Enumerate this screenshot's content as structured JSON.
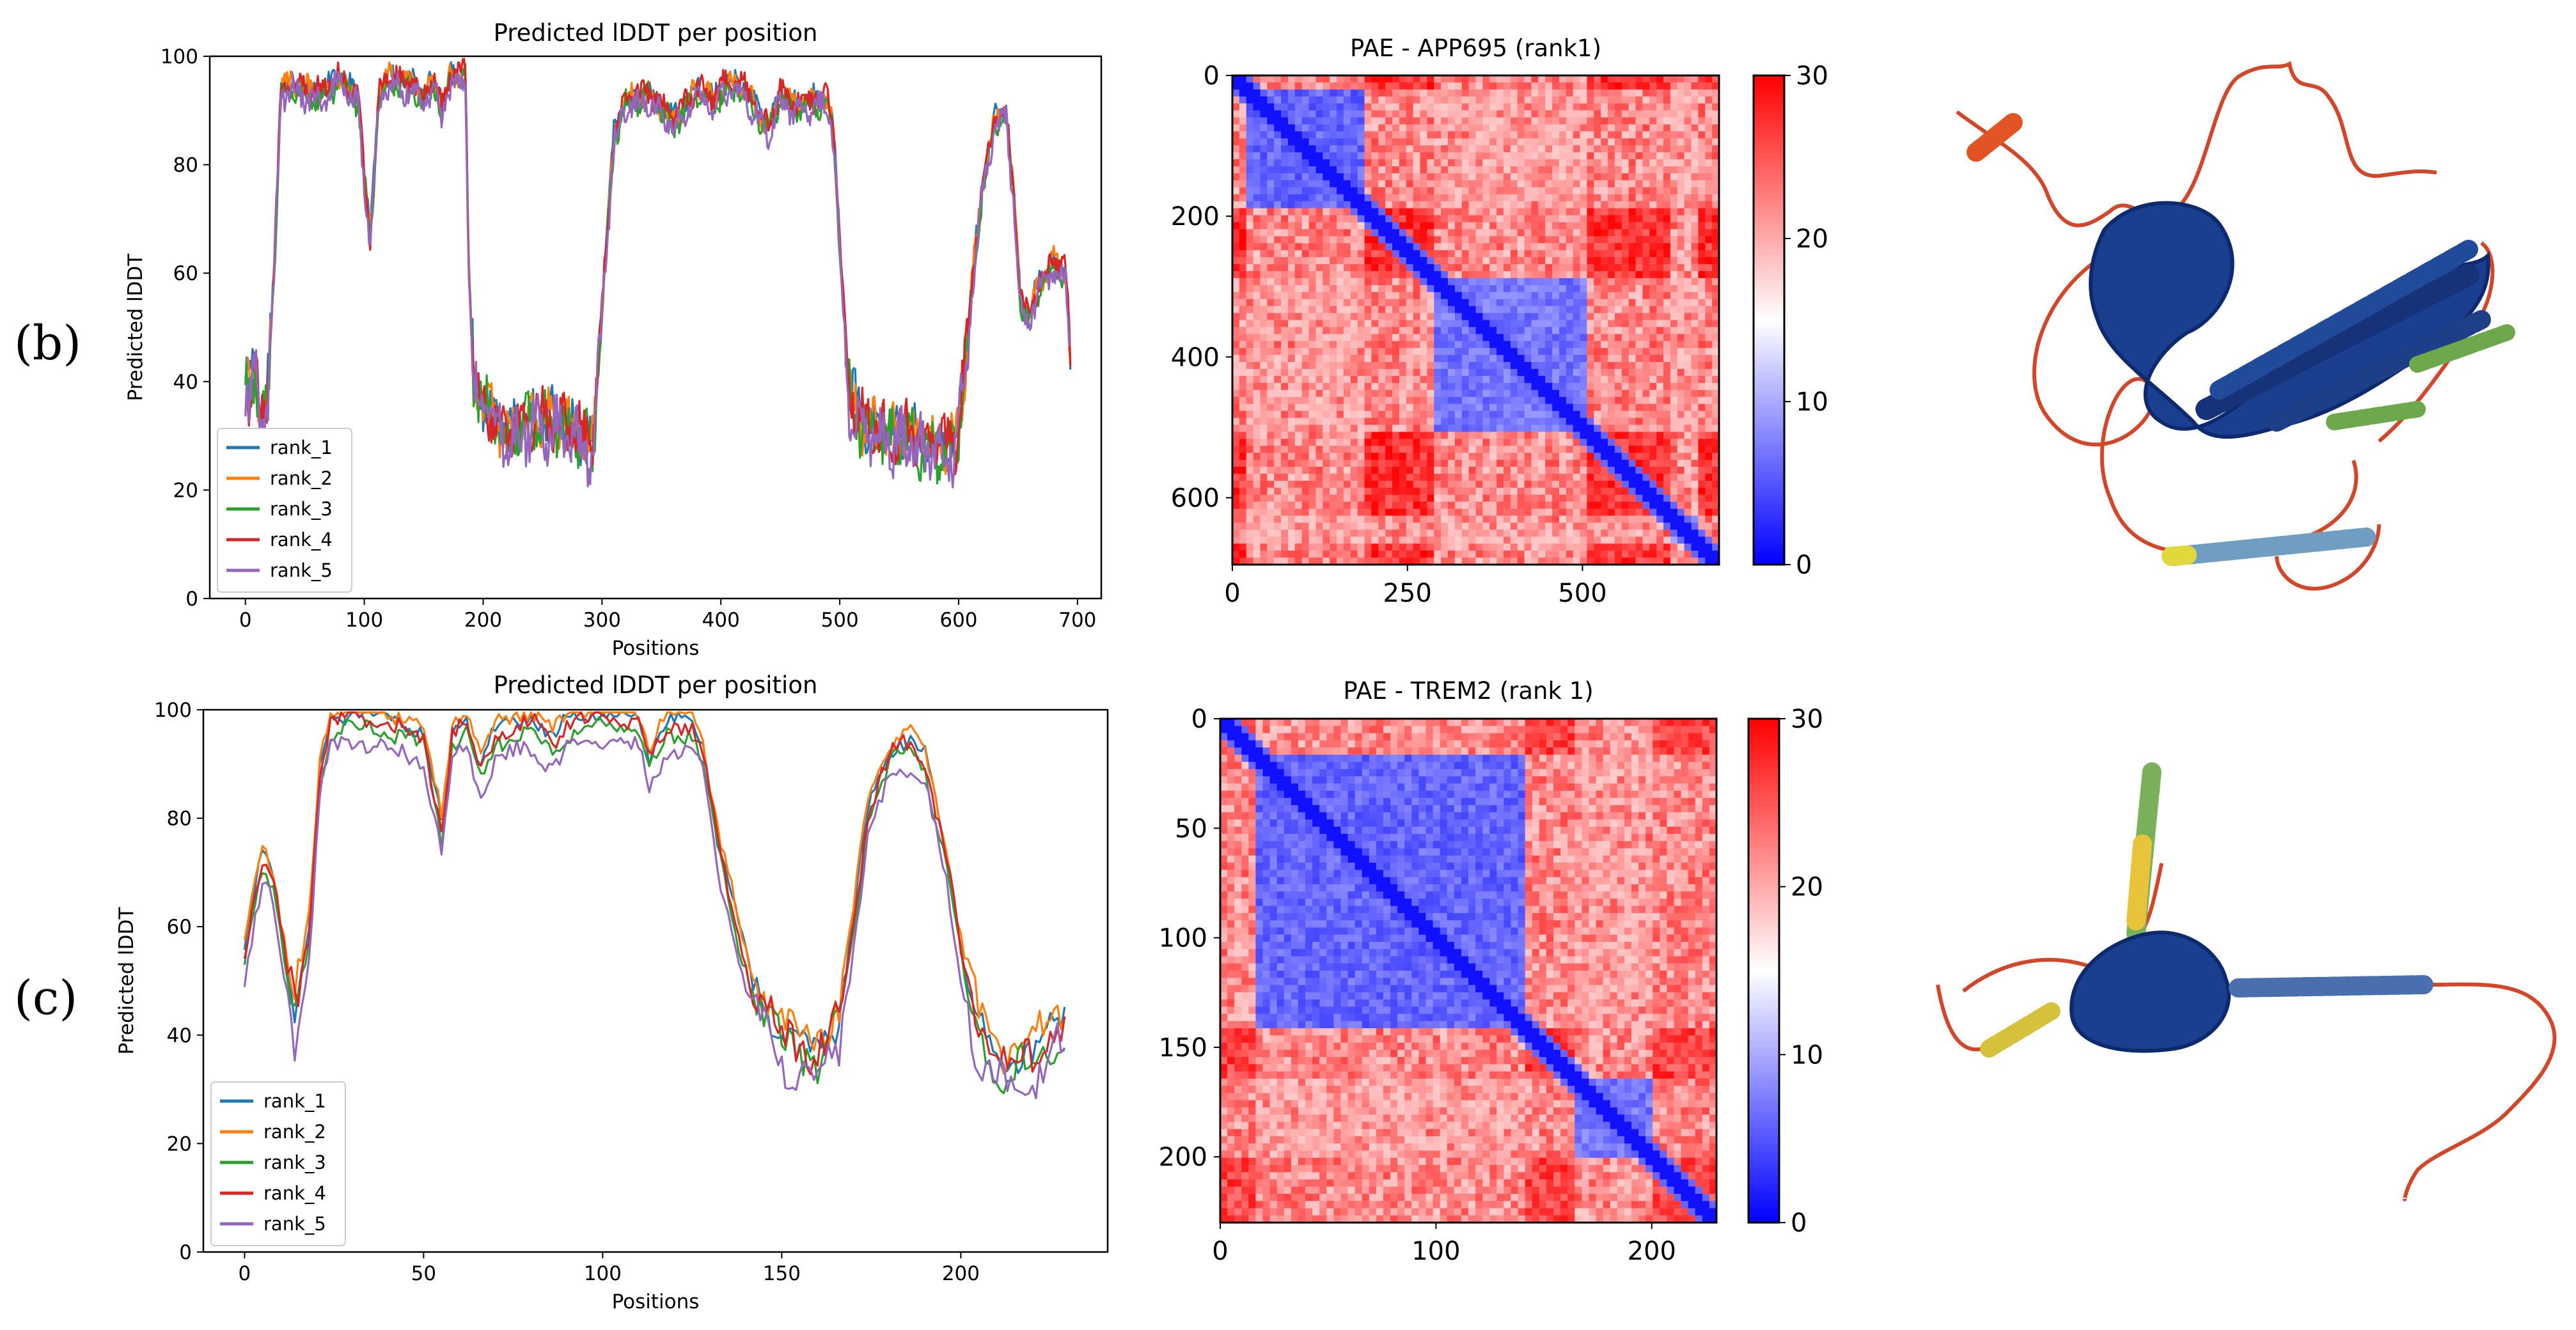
{
  "panel_labels": {
    "b": "(b)",
    "c": "(c)"
  },
  "colors": {
    "rank_1": "#1f77b4",
    "rank_2": "#ff7f0e",
    "rank_3": "#2ca02c",
    "rank_4": "#d62728",
    "rank_5": "#9467bd",
    "pae_low": "#0000ff",
    "pae_mid": "#ffffff",
    "pae_high": "#ff0000"
  },
  "chart_data": [
    {
      "id": "lddt_b",
      "type": "line",
      "title": "Predicted lDDT per position",
      "xlabel": "Positions",
      "ylabel": "Predicted lDDT",
      "xlim": [
        -30,
        720
      ],
      "ylim": [
        0,
        100
      ],
      "xticks": [
        0,
        100,
        200,
        300,
        400,
        500,
        600,
        700
      ],
      "yticks": [
        0,
        20,
        40,
        60,
        80,
        100
      ],
      "legend": "lower-left",
      "n": 695,
      "profile": [
        [
          0,
          42
        ],
        [
          3,
          38
        ],
        [
          8,
          45
        ],
        [
          12,
          32
        ],
        [
          18,
          35
        ],
        [
          24,
          60
        ],
        [
          30,
          94
        ],
        [
          40,
          95
        ],
        [
          60,
          93
        ],
        [
          80,
          96
        ],
        [
          95,
          92
        ],
        [
          100,
          78
        ],
        [
          105,
          66
        ],
        [
          112,
          92
        ],
        [
          120,
          96
        ],
        [
          140,
          95
        ],
        [
          150,
          92
        ],
        [
          158,
          96
        ],
        [
          165,
          90
        ],
        [
          172,
          96
        ],
        [
          185,
          97
        ],
        [
          188,
          60
        ],
        [
          192,
          40
        ],
        [
          200,
          36
        ],
        [
          220,
          30
        ],
        [
          240,
          33
        ],
        [
          260,
          33
        ],
        [
          280,
          30
        ],
        [
          292,
          28
        ],
        [
          296,
          40
        ],
        [
          302,
          60
        ],
        [
          310,
          85
        ],
        [
          320,
          92
        ],
        [
          340,
          93
        ],
        [
          360,
          88
        ],
        [
          380,
          94
        ],
        [
          395,
          92
        ],
        [
          405,
          95
        ],
        [
          420,
          94
        ],
        [
          430,
          90
        ],
        [
          440,
          87
        ],
        [
          450,
          93
        ],
        [
          460,
          91
        ],
        [
          480,
          92
        ],
        [
          490,
          92
        ],
        [
          495,
          85
        ],
        [
          502,
          58
        ],
        [
          508,
          38
        ],
        [
          520,
          32
        ],
        [
          540,
          30
        ],
        [
          560,
          30
        ],
        [
          580,
          28
        ],
        [
          598,
          29
        ],
        [
          605,
          42
        ],
        [
          612,
          60
        ],
        [
          620,
          76
        ],
        [
          630,
          88
        ],
        [
          640,
          90
        ],
        [
          646,
          75
        ],
        [
          652,
          55
        ],
        [
          658,
          52
        ],
        [
          668,
          58
        ],
        [
          680,
          62
        ],
        [
          690,
          60
        ],
        [
          694,
          46
        ]
      ],
      "series": [
        {
          "name": "rank_1",
          "offset": 0.5,
          "noise": 3.0,
          "phase": 0.3
        },
        {
          "name": "rank_2",
          "offset": 0.2,
          "noise": 3.2,
          "phase": 1.1
        },
        {
          "name": "rank_3",
          "offset": -0.8,
          "noise": 3.4,
          "phase": 2.2
        },
        {
          "name": "rank_4",
          "offset": 0.4,
          "noise": 3.3,
          "phase": 3.7
        },
        {
          "name": "rank_5",
          "offset": -1.4,
          "noise": 3.6,
          "phase": 4.9
        }
      ]
    },
    {
      "id": "lddt_c",
      "type": "line",
      "title": "Predicted lDDT per position",
      "xlabel": "Positions",
      "ylabel": "Predicted lDDT",
      "xlim": [
        -11.5,
        241
      ],
      "ylim": [
        0,
        100
      ],
      "xticks": [
        0,
        50,
        100,
        150,
        200
      ],
      "yticks": [
        0,
        20,
        40,
        60,
        80,
        100
      ],
      "legend": "lower-left",
      "n": 230,
      "profile": [
        [
          0,
          55
        ],
        [
          2,
          62
        ],
        [
          5,
          72
        ],
        [
          8,
          68
        ],
        [
          11,
          55
        ],
        [
          14,
          43
        ],
        [
          18,
          58
        ],
        [
          21,
          88
        ],
        [
          24,
          97
        ],
        [
          30,
          98
        ],
        [
          40,
          97
        ],
        [
          50,
          94
        ],
        [
          53,
          84
        ],
        [
          55,
          77
        ],
        [
          58,
          95
        ],
        [
          62,
          97
        ],
        [
          66,
          88
        ],
        [
          70,
          95
        ],
        [
          80,
          97
        ],
        [
          86,
          93
        ],
        [
          90,
          97
        ],
        [
          100,
          98
        ],
        [
          110,
          97
        ],
        [
          113,
          90
        ],
        [
          118,
          96
        ],
        [
          125,
          97
        ],
        [
          128,
          92
        ],
        [
          132,
          75
        ],
        [
          138,
          58
        ],
        [
          142,
          48
        ],
        [
          150,
          40
        ],
        [
          160,
          36
        ],
        [
          166,
          42
        ],
        [
          170,
          60
        ],
        [
          174,
          80
        ],
        [
          180,
          91
        ],
        [
          185,
          93
        ],
        [
          190,
          90
        ],
        [
          196,
          72
        ],
        [
          200,
          55
        ],
        [
          205,
          40
        ],
        [
          212,
          34
        ],
        [
          220,
          35
        ],
        [
          228,
          42
        ]
      ],
      "series": [
        {
          "name": "rank_1",
          "offset": 1.5,
          "noise": 2.2,
          "phase": 0.6
        },
        {
          "name": "rank_2",
          "offset": 3.0,
          "noise": 2.4,
          "phase": 1.4
        },
        {
          "name": "rank_3",
          "offset": -1.0,
          "noise": 2.5,
          "phase": 2.8
        },
        {
          "name": "rank_4",
          "offset": 0.6,
          "noise": 2.6,
          "phase": 3.3
        },
        {
          "name": "rank_5",
          "offset": -4.0,
          "noise": 2.6,
          "phase": 5.2
        }
      ]
    },
    {
      "id": "pae_b",
      "type": "heatmap",
      "title": "PAE - APP695 (rank1)",
      "n": 695,
      "xticks": [
        0,
        250,
        500
      ],
      "yticks": [
        0,
        200,
        400,
        600
      ],
      "colorbar_ticks": [
        0,
        10,
        20,
        30
      ],
      "vmin": 0,
      "vmax": 30,
      "blocks": [
        {
          "from": 18,
          "to": 190,
          "value": 4
        },
        {
          "from": 290,
          "to": 505,
          "value": 5
        },
        {
          "from": 628,
          "to": 670,
          "value": 6
        }
      ],
      "background": 27
    },
    {
      "id": "pae_c",
      "type": "heatmap",
      "title": "PAE - TREM2 (rank 1)",
      "n": 230,
      "xticks": [
        0,
        100,
        200
      ],
      "yticks": [
        0,
        50,
        100,
        150,
        200
      ],
      "colorbar_ticks": [
        0,
        10,
        20,
        30
      ],
      "vmin": 0,
      "vmax": 30,
      "blocks": [
        {
          "from": 18,
          "to": 140,
          "value": 4
        },
        {
          "from": 165,
          "to": 200,
          "value": 5
        }
      ],
      "background": 26
    }
  ],
  "structures": [
    {
      "id": "structure_b",
      "description": "APP695 rank 1 ribbon"
    },
    {
      "id": "structure_c",
      "description": "TREM2 rank 1 ribbon"
    }
  ]
}
